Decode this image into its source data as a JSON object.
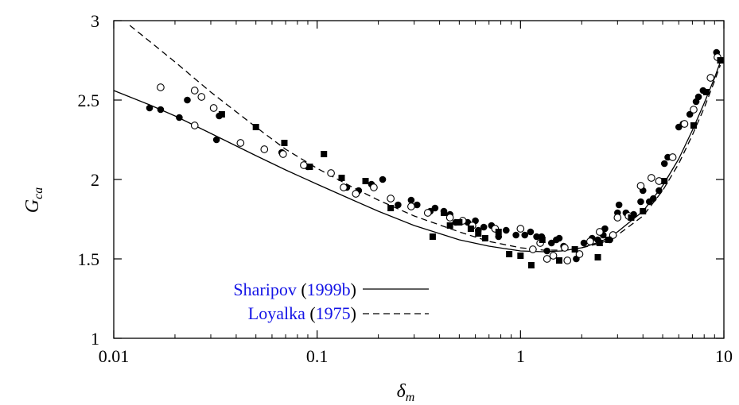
{
  "colors": {
    "axis": "#000000",
    "legend_name": "#1414e6",
    "legend_paren": "#000000",
    "marker": "#000000"
  },
  "chart_data": {
    "type": "scatter",
    "xscale": "log",
    "xlim": [
      0.01,
      10
    ],
    "ylim": [
      1,
      3
    ],
    "x_ticks": [
      {
        "value": 0.01,
        "label": "0.01"
      },
      {
        "value": 0.1,
        "label": "0.1"
      },
      {
        "value": 1,
        "label": "1"
      },
      {
        "value": 10,
        "label": "10"
      }
    ],
    "y_ticks": [
      {
        "value": 1,
        "label": "1"
      },
      {
        "value": 1.5,
        "label": "1.5"
      },
      {
        "value": 2,
        "label": "2"
      },
      {
        "value": 2.5,
        "label": "2.5"
      },
      {
        "value": 3,
        "label": "3"
      }
    ],
    "xlabel": {
      "base": "δ",
      "sub": "m"
    },
    "ylabel": {
      "base": "G",
      "sub": "ca"
    },
    "legend_placement": "bottom-left",
    "legend": [
      {
        "name": "Sharipov",
        "year": "1999b",
        "style": "solid"
      },
      {
        "name": "Loyalka",
        "year": "1975",
        "style": "dashed"
      }
    ],
    "lines": [
      {
        "legend_index": 0,
        "style": "solid",
        "x": [
          0.01,
          0.015,
          0.02,
          0.03,
          0.05,
          0.07,
          0.1,
          0.15,
          0.2,
          0.3,
          0.5,
          0.7,
          1.0,
          1.3,
          1.6,
          2.0,
          2.5,
          3.0,
          4.0,
          5.0,
          6.0,
          7.0,
          8.0,
          9.0,
          9.6
        ],
        "y": [
          2.56,
          2.47,
          2.4,
          2.29,
          2.15,
          2.06,
          1.97,
          1.87,
          1.8,
          1.71,
          1.62,
          1.58,
          1.55,
          1.545,
          1.55,
          1.57,
          1.61,
          1.67,
          1.8,
          1.96,
          2.13,
          2.31,
          2.48,
          2.64,
          2.74
        ]
      },
      {
        "legend_index": 1,
        "style": "dashed",
        "x": [
          0.012,
          0.015,
          0.02,
          0.03,
          0.05,
          0.07,
          0.1,
          0.15,
          0.2,
          0.3,
          0.5,
          0.7,
          1.0,
          1.3,
          1.6,
          2.0,
          2.5,
          3.0,
          4.0,
          5.0,
          6.0,
          7.0,
          8.0,
          9.0,
          9.6
        ],
        "y": [
          2.97,
          2.87,
          2.74,
          2.55,
          2.33,
          2.19,
          2.07,
          1.95,
          1.87,
          1.77,
          1.67,
          1.61,
          1.57,
          1.555,
          1.555,
          1.57,
          1.6,
          1.65,
          1.77,
          1.93,
          2.1,
          2.28,
          2.45,
          2.62,
          2.72
        ]
      }
    ],
    "series": [
      {
        "marker": "filled-circle",
        "points": [
          [
            0.015,
            2.45
          ],
          [
            0.017,
            2.44
          ],
          [
            0.021,
            2.39
          ],
          [
            0.023,
            2.5
          ],
          [
            0.032,
            2.25
          ],
          [
            0.033,
            2.4
          ],
          [
            0.067,
            2.17
          ],
          [
            0.09,
            2.08
          ],
          [
            0.14,
            1.95
          ],
          [
            0.16,
            1.93
          ],
          [
            0.185,
            1.97
          ],
          [
            0.21,
            2.0
          ],
          [
            0.25,
            1.84
          ],
          [
            0.29,
            1.87
          ],
          [
            0.31,
            1.84
          ],
          [
            0.36,
            1.8
          ],
          [
            0.38,
            1.82
          ],
          [
            0.42,
            1.8
          ],
          [
            0.45,
            1.78
          ],
          [
            0.48,
            1.73
          ],
          [
            0.55,
            1.73
          ],
          [
            0.6,
            1.74
          ],
          [
            0.62,
            1.68
          ],
          [
            0.66,
            1.7
          ],
          [
            0.72,
            1.71
          ],
          [
            0.78,
            1.64
          ],
          [
            0.85,
            1.68
          ],
          [
            0.95,
            1.65
          ],
          [
            1.05,
            1.65
          ],
          [
            1.12,
            1.67
          ],
          [
            1.2,
            1.64
          ],
          [
            1.27,
            1.64
          ],
          [
            1.35,
            1.55
          ],
          [
            1.42,
            1.6
          ],
          [
            1.5,
            1.62
          ],
          [
            1.55,
            1.63
          ],
          [
            1.63,
            1.58
          ],
          [
            1.7,
            1.49
          ],
          [
            1.88,
            1.5
          ],
          [
            2.05,
            1.6
          ],
          [
            2.25,
            1.63
          ],
          [
            2.4,
            1.62
          ],
          [
            2.55,
            1.65
          ],
          [
            2.6,
            1.69
          ],
          [
            2.75,
            1.62
          ],
          [
            3.0,
            1.79
          ],
          [
            3.05,
            1.84
          ],
          [
            3.3,
            1.79
          ],
          [
            3.6,
            1.78
          ],
          [
            3.9,
            1.86
          ],
          [
            4.0,
            1.93
          ],
          [
            4.3,
            1.86
          ],
          [
            4.5,
            1.88
          ],
          [
            4.8,
            1.93
          ],
          [
            5.1,
            2.1
          ],
          [
            5.3,
            2.14
          ],
          [
            5.6,
            2.14
          ],
          [
            6.0,
            2.33
          ],
          [
            6.3,
            2.35
          ],
          [
            6.8,
            2.41
          ],
          [
            7.3,
            2.49
          ],
          [
            7.5,
            2.52
          ],
          [
            7.9,
            2.56
          ],
          [
            8.6,
            2.64
          ],
          [
            9.2,
            2.8
          ]
        ]
      },
      {
        "marker": "open-circle",
        "points": [
          [
            0.017,
            2.58
          ],
          [
            0.025,
            2.34
          ],
          [
            0.025,
            2.56
          ],
          [
            0.027,
            2.52
          ],
          [
            0.031,
            2.45
          ],
          [
            0.042,
            2.23
          ],
          [
            0.055,
            2.19
          ],
          [
            0.068,
            2.16
          ],
          [
            0.086,
            2.09
          ],
          [
            0.117,
            2.04
          ],
          [
            0.135,
            1.95
          ],
          [
            0.155,
            1.91
          ],
          [
            0.19,
            1.95
          ],
          [
            0.23,
            1.88
          ],
          [
            0.29,
            1.83
          ],
          [
            0.35,
            1.79
          ],
          [
            0.45,
            1.76
          ],
          [
            0.52,
            1.74
          ],
          [
            0.58,
            1.71
          ],
          [
            0.75,
            1.69
          ],
          [
            1.0,
            1.69
          ],
          [
            1.15,
            1.56
          ],
          [
            1.25,
            1.6
          ],
          [
            1.35,
            1.5
          ],
          [
            1.45,
            1.52
          ],
          [
            1.65,
            1.57
          ],
          [
            1.7,
            1.49
          ],
          [
            1.95,
            1.53
          ],
          [
            2.2,
            1.61
          ],
          [
            2.45,
            1.67
          ],
          [
            2.85,
            1.65
          ],
          [
            3.0,
            1.76
          ],
          [
            3.4,
            1.77
          ],
          [
            3.9,
            1.96
          ],
          [
            4.4,
            2.01
          ],
          [
            4.8,
            1.99
          ],
          [
            5.6,
            2.14
          ],
          [
            6.4,
            2.35
          ],
          [
            7.1,
            2.44
          ],
          [
            8.6,
            2.64
          ],
          [
            9.3,
            2.77
          ]
        ]
      },
      {
        "marker": "filled-square",
        "points": [
          [
            0.034,
            2.41
          ],
          [
            0.05,
            2.33
          ],
          [
            0.069,
            2.23
          ],
          [
            0.092,
            2.08
          ],
          [
            0.108,
            2.16
          ],
          [
            0.132,
            2.01
          ],
          [
            0.173,
            1.99
          ],
          [
            0.23,
            1.82
          ],
          [
            0.37,
            1.64
          ],
          [
            0.42,
            1.79
          ],
          [
            0.45,
            1.71
          ],
          [
            0.5,
            1.73
          ],
          [
            0.57,
            1.69
          ],
          [
            0.62,
            1.66
          ],
          [
            0.67,
            1.63
          ],
          [
            0.78,
            1.67
          ],
          [
            0.88,
            1.53
          ],
          [
            1.0,
            1.52
          ],
          [
            1.13,
            1.46
          ],
          [
            1.28,
            1.62
          ],
          [
            1.55,
            1.49
          ],
          [
            1.85,
            1.56
          ],
          [
            2.4,
            1.51
          ],
          [
            2.45,
            1.6
          ],
          [
            2.7,
            1.62
          ],
          [
            3.5,
            1.76
          ],
          [
            4.0,
            1.8
          ],
          [
            5.1,
            1.99
          ],
          [
            7.1,
            2.34
          ],
          [
            8.2,
            2.55
          ],
          [
            9.6,
            2.75
          ]
        ]
      }
    ]
  }
}
